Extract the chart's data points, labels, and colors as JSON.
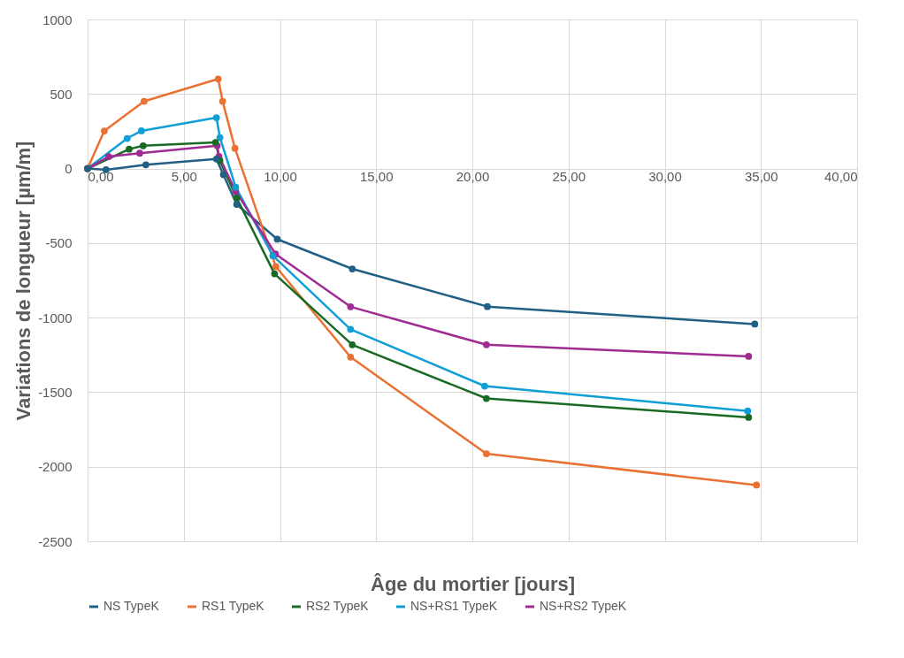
{
  "chart_data": {
    "type": "line",
    "xlabel": "Âge du mortier [jours]",
    "ylabel": "Variations de longueur [µm/m]",
    "xlim": [
      0,
      40
    ],
    "xticks": [
      {
        "value": 0,
        "label": "0,00"
      },
      {
        "value": 5,
        "label": "5,00"
      },
      {
        "value": 10,
        "label": "10,00"
      },
      {
        "value": 15,
        "label": "15,00"
      },
      {
        "value": 20,
        "label": "20,00"
      },
      {
        "value": 25,
        "label": "25,00"
      },
      {
        "value": 30,
        "label": "30,00"
      },
      {
        "value": 35,
        "label": "35,00"
      },
      {
        "value": 40,
        "label": "40,00"
      }
    ],
    "ylim": [
      -2500,
      1000
    ],
    "yticks": [
      -2500,
      -2000,
      -1500,
      -1000,
      -500,
      0,
      500,
      1000
    ],
    "grid": true,
    "legend": "bottom",
    "marker": "circle",
    "line_style": "solid",
    "series": [
      {
        "name": "NS TypeK",
        "color": "#215f85",
        "x": [
          0,
          0.96,
          3.03,
          6.7,
          7.06,
          7.75,
          9.86,
          13.76,
          20.78,
          34.68
        ],
        "values": [
          0,
          -8,
          25,
          64,
          -41,
          -240,
          -474,
          -673,
          -926,
          -1043
        ]
      },
      {
        "name": "RS1 TypeK",
        "color": "#e97132",
        "x": [
          0,
          0.87,
          2.94,
          6.79,
          7.02,
          7.66,
          9.79,
          13.67,
          20.73,
          34.77
        ],
        "values": [
          0,
          252,
          451,
          601,
          451,
          136,
          -658,
          -1265,
          -1913,
          -2123
        ]
      },
      {
        "name": "RS2 TypeK",
        "color": "#196b24",
        "x": [
          0,
          2.16,
          2.89,
          6.65,
          6.88,
          7.75,
          9.72,
          13.76,
          20.73,
          34.36
        ],
        "values": [
          0,
          130,
          153,
          175,
          53,
          -197,
          -706,
          -1182,
          -1542,
          -1669
        ]
      },
      {
        "name": "NS+RS1 TypeK",
        "color": "#0f9ed5",
        "x": [
          0,
          2.06,
          2.8,
          6.7,
          6.88,
          7.7,
          9.63,
          13.67,
          20.64,
          34.31
        ],
        "values": [
          0,
          202,
          253,
          341,
          208,
          -125,
          -585,
          -1078,
          -1459,
          -1626
        ]
      },
      {
        "name": "NS+RS2 TypeK",
        "color": "#a02b93",
        "x": [
          0,
          1.1,
          2.71,
          6.74,
          6.83,
          7.7,
          9.77,
          13.67,
          20.73,
          34.36
        ],
        "values": [
          0,
          80,
          103,
          153,
          81,
          -152,
          -573,
          -927,
          -1182,
          -1260
        ]
      }
    ]
  }
}
